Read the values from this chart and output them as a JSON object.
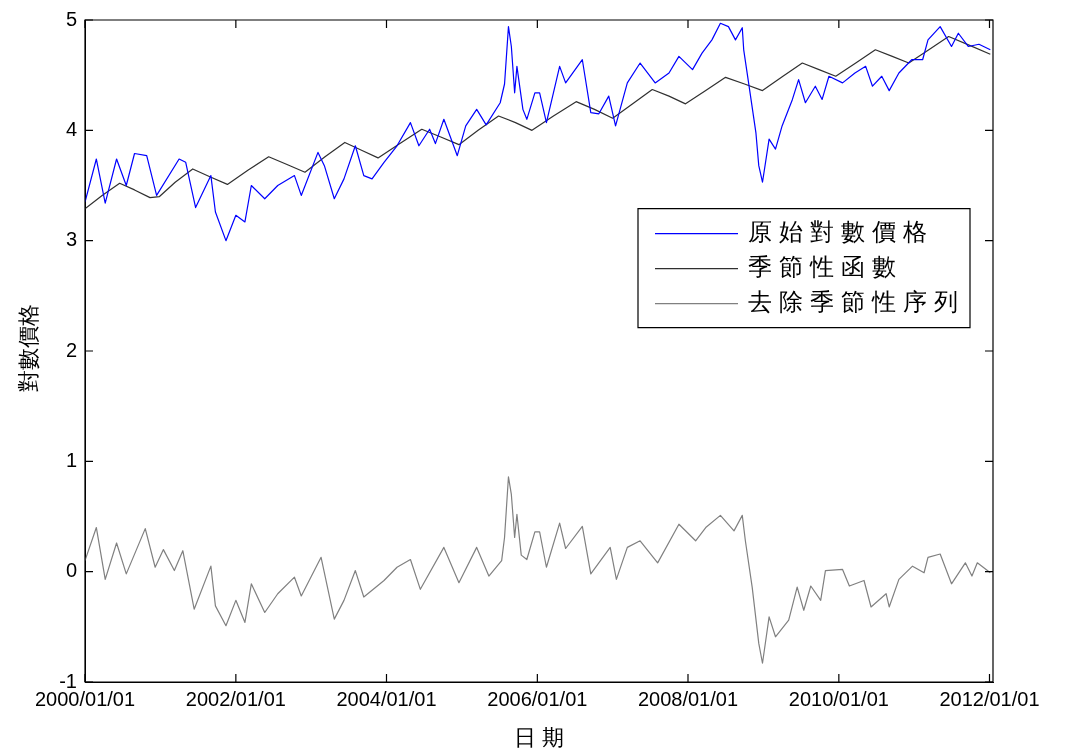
{
  "chart_data": {
    "type": "line",
    "xlabel": "日期",
    "ylabel": "對數價格",
    "legend": "right",
    "xlim": [
      "2000-01-01",
      "2012-01-18"
    ],
    "ylim": [
      -1,
      5
    ],
    "yticks": [
      -1,
      0,
      1,
      2,
      3,
      4,
      5
    ],
    "xticks": [
      {
        "value": "2000-01-01",
        "label": "2000/01/01"
      },
      {
        "value": "2002-01-01",
        "label": "2002/01/01"
      },
      {
        "value": "2004-01-01",
        "label": "2004/01/01"
      },
      {
        "value": "2006-01-01",
        "label": "2006/01/01"
      },
      {
        "value": "2008-01-01",
        "label": "2008/01/01"
      },
      {
        "value": "2010-01-01",
        "label": "2010/01/01"
      },
      {
        "value": "2012-01-01",
        "label": "2012/01/01"
      }
    ],
    "series": [
      {
        "name": "原始對數價格",
        "color": "#0000ff",
        "x": [
          "2000-01-01",
          "2000-02-25",
          "2000-04-08",
          "2000-06-02",
          "2000-07-19",
          "2000-08-28",
          "2000-10-26",
          "2000-12-13",
          "2001-04-01",
          "2001-05-03",
          "2001-06-20",
          "2001-09-02",
          "2001-09-24",
          "2001-11-14",
          "2002-01-01",
          "2002-02-14",
          "2002-03-17",
          "2002-05-21",
          "2002-07-23",
          "2002-10-12",
          "2002-11-14",
          "2003-02-03",
          "2003-03-06",
          "2003-04-23",
          "2003-06-09",
          "2003-08-03",
          "2003-09-13",
          "2003-10-23",
          "2003-12-20",
          "2004-02-21",
          "2004-04-26",
          "2004-06-06",
          "2004-07-28",
          "2004-08-25",
          "2004-10-05",
          "2004-12-09",
          "2005-01-19",
          "2005-03-13",
          "2005-04-28",
          "2005-07-05",
          "2005-07-26",
          "2005-08-14",
          "2005-08-28",
          "2005-09-13",
          "2005-09-24",
          "2005-10-23",
          "2005-11-11",
          "2005-12-20",
          "2006-01-12",
          "2006-02-14",
          "2006-04-19",
          "2006-05-18",
          "2006-08-07",
          "2006-09-17",
          "2006-10-26",
          "2006-12-13",
          "2007-01-15",
          "2007-03-13",
          "2007-05-14",
          "2007-07-26",
          "2007-10-01",
          "2007-11-18",
          "2008-01-23",
          "2008-03-09",
          "2008-04-26",
          "2008-06-06",
          "2008-07-15",
          "2008-08-18",
          "2008-09-20",
          "2008-09-27",
          "2008-10-23",
          "2008-11-25",
          "2008-12-09",
          "2008-12-27",
          "2009-01-28",
          "2009-02-28",
          "2009-04-01",
          "2009-05-21",
          "2009-06-20",
          "2009-07-23",
          "2009-09-09",
          "2009-10-12",
          "2009-11-14",
          "2010-01-19",
          "2010-03-20",
          "2010-05-11",
          "2010-06-13",
          "2010-07-28",
          "2010-09-02",
          "2010-10-19",
          "2010-12-20",
          "2011-02-11",
          "2011-03-09",
          "2011-05-07",
          "2011-07-01",
          "2011-08-03",
          "2011-09-20",
          "2011-11-11",
          "2012-01-05"
        ],
        "values": [
          3.35,
          3.74,
          3.34,
          3.74,
          3.5,
          3.79,
          3.77,
          3.41,
          3.74,
          3.71,
          3.3,
          3.59,
          3.26,
          3.0,
          3.23,
          3.17,
          3.5,
          3.38,
          3.5,
          3.59,
          3.41,
          3.8,
          3.68,
          3.38,
          3.56,
          3.86,
          3.59,
          3.56,
          3.71,
          3.86,
          4.07,
          3.86,
          4.01,
          3.88,
          4.1,
          3.77,
          4.04,
          4.19,
          4.05,
          4.25,
          4.42,
          4.94,
          4.76,
          4.34,
          4.58,
          4.19,
          4.1,
          4.34,
          4.34,
          4.07,
          4.58,
          4.43,
          4.64,
          4.16,
          4.15,
          4.31,
          4.04,
          4.43,
          4.61,
          4.43,
          4.52,
          4.67,
          4.55,
          4.7,
          4.82,
          4.97,
          4.94,
          4.82,
          4.93,
          4.73,
          4.4,
          3.98,
          3.68,
          3.53,
          3.92,
          3.83,
          4.04,
          4.28,
          4.46,
          4.25,
          4.4,
          4.28,
          4.49,
          4.43,
          4.52,
          4.58,
          4.4,
          4.49,
          4.36,
          4.52,
          4.64,
          4.64,
          4.82,
          4.94,
          4.76,
          4.88,
          4.76,
          4.78,
          4.73
        ]
      },
      {
        "name": "季節性函數",
        "color": "#303030",
        "x": [
          "2000-01-01",
          "2000-03-24",
          "2000-06-17",
          "2000-08-28",
          "2000-11-11",
          "2000-12-27",
          "2001-03-13",
          "2001-06-06",
          "2001-08-28",
          "2001-11-21",
          "2002-03-02",
          "2002-06-09",
          "2002-09-06",
          "2002-12-02",
          "2003-03-09",
          "2003-06-13",
          "2003-09-02",
          "2003-11-21",
          "2004-03-06",
          "2004-06-20",
          "2004-09-20",
          "2004-12-17",
          "2005-03-20",
          "2005-06-27",
          "2005-09-17",
          "2005-12-06",
          "2006-03-20",
          "2006-07-08",
          "2006-10-05",
          "2007-01-01",
          "2007-04-08",
          "2007-07-12",
          "2007-10-01",
          "2007-12-20",
          "2008-03-27",
          "2008-07-01",
          "2008-10-01",
          "2008-12-27",
          "2009-04-05",
          "2009-07-08",
          "2009-09-27",
          "2009-12-17",
          "2010-03-24",
          "2010-06-27",
          "2010-09-17",
          "2010-12-06",
          "2011-03-13",
          "2011-06-17",
          "2011-09-27",
          "2012-01-05"
        ],
        "values": [
          3.29,
          3.41,
          3.52,
          3.46,
          3.39,
          3.4,
          3.53,
          3.65,
          3.58,
          3.51,
          3.64,
          3.76,
          3.69,
          3.62,
          3.76,
          3.89,
          3.82,
          3.75,
          3.88,
          4.01,
          3.94,
          3.87,
          4.0,
          4.13,
          4.07,
          4.0,
          4.13,
          4.26,
          4.19,
          4.11,
          4.24,
          4.37,
          4.31,
          4.24,
          4.36,
          4.48,
          4.42,
          4.36,
          4.49,
          4.61,
          4.55,
          4.49,
          4.61,
          4.73,
          4.67,
          4.61,
          4.73,
          4.85,
          4.77,
          4.69
        ]
      },
      {
        "name": "去除季節性序列",
        "color": "#808080",
        "x": [
          "2000-01-01",
          "2000-02-25",
          "2000-04-08",
          "2000-06-02",
          "2000-07-19",
          "2000-10-19",
          "2000-12-06",
          "2001-01-15",
          "2001-03-09",
          "2001-04-19",
          "2001-06-13",
          "2001-09-02",
          "2001-09-24",
          "2001-11-14",
          "2002-01-01",
          "2002-02-14",
          "2002-03-17",
          "2002-05-21",
          "2002-07-23",
          "2002-10-12",
          "2002-11-14",
          "2003-02-18",
          "2003-04-23",
          "2003-06-09",
          "2003-08-03",
          "2003-09-13",
          "2003-12-20",
          "2004-02-21",
          "2004-04-26",
          "2004-06-13",
          "2004-10-05",
          "2004-12-17",
          "2005-03-13",
          "2005-05-11",
          "2005-07-12",
          "2005-07-26",
          "2005-08-14",
          "2005-08-28",
          "2005-09-13",
          "2005-09-24",
          "2005-10-15",
          "2005-11-11",
          "2005-12-20",
          "2006-01-12",
          "2006-02-14",
          "2006-04-19",
          "2006-05-18",
          "2006-08-07",
          "2006-09-17",
          "2006-11-03",
          "2006-12-20",
          "2007-01-19",
          "2007-03-13",
          "2007-05-14",
          "2007-08-07",
          "2007-11-18",
          "2008-02-07",
          "2008-03-27",
          "2008-06-06",
          "2008-08-11",
          "2008-09-20",
          "2008-10-05",
          "2008-11-07",
          "2008-12-09",
          "2008-12-27",
          "2009-01-28",
          "2009-02-28",
          "2009-05-03",
          "2009-06-13",
          "2009-07-15",
          "2009-08-18",
          "2009-10-05",
          "2009-10-28",
          "2010-01-19",
          "2010-02-21",
          "2010-05-03",
          "2010-06-06",
          "2010-08-18",
          "2010-09-02",
          "2010-10-19",
          "2010-12-24",
          "2011-02-18",
          "2011-03-09",
          "2011-05-07",
          "2011-07-01",
          "2011-09-06",
          "2011-10-08",
          "2011-11-03",
          "2012-01-05"
        ],
        "values": [
          0.1,
          0.4,
          -0.07,
          0.26,
          -0.02,
          0.39,
          0.04,
          0.2,
          0.01,
          0.19,
          -0.34,
          0.05,
          -0.31,
          -0.49,
          -0.26,
          -0.46,
          -0.11,
          -0.37,
          -0.2,
          -0.05,
          -0.22,
          0.13,
          -0.43,
          -0.26,
          0.01,
          -0.23,
          -0.08,
          0.04,
          0.11,
          -0.16,
          0.22,
          -0.1,
          0.22,
          -0.04,
          0.1,
          0.31,
          0.86,
          0.7,
          0.31,
          0.52,
          0.15,
          0.11,
          0.36,
          0.36,
          0.04,
          0.44,
          0.21,
          0.41,
          -0.02,
          0.1,
          0.22,
          -0.07,
          0.22,
          0.28,
          0.08,
          0.43,
          0.28,
          0.4,
          0.51,
          0.37,
          0.51,
          0.28,
          -0.14,
          -0.65,
          -0.83,
          -0.41,
          -0.59,
          -0.44,
          -0.14,
          -0.35,
          -0.13,
          -0.26,
          0.01,
          0.02,
          -0.13,
          -0.08,
          -0.32,
          -0.2,
          -0.32,
          -0.07,
          0.05,
          -0.01,
          0.13,
          0.16,
          -0.11,
          0.08,
          -0.04,
          0.08,
          -0.01
        ]
      }
    ]
  }
}
